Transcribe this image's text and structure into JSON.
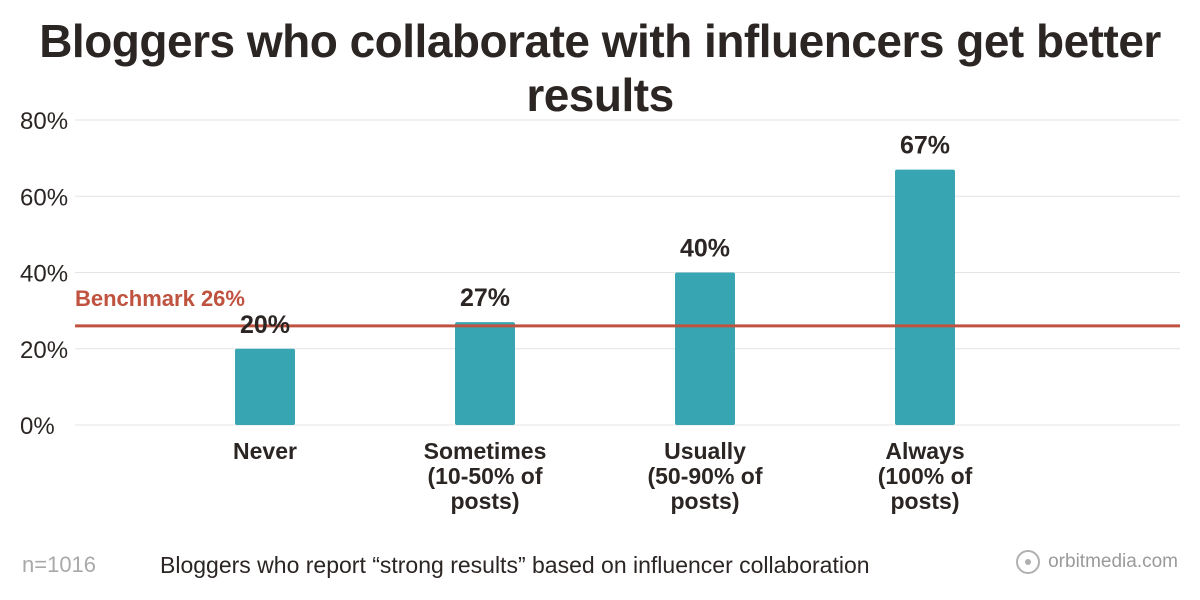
{
  "chart_data": {
    "type": "bar",
    "title": "Bloggers who collaborate with influencers get better results",
    "categories": [
      [
        "Never"
      ],
      [
        "Sometimes",
        "(10-50% of",
        "posts)"
      ],
      [
        "Usually",
        "(50-90% of",
        "posts)"
      ],
      [
        "Always",
        "(100% of",
        "posts)"
      ]
    ],
    "values": [
      20,
      27,
      40,
      67
    ],
    "value_labels": [
      "20%",
      "27%",
      "40%",
      "67%"
    ],
    "ylim": [
      0,
      80
    ],
    "yticks": [
      0,
      20,
      40,
      60,
      80
    ],
    "ytick_labels": [
      "0%",
      "20%",
      "40%",
      "60%",
      "80%"
    ],
    "grid": true,
    "benchmark": {
      "value": 26,
      "label": "Benchmark 26%"
    },
    "xlabel": "",
    "ylabel": ""
  },
  "footer": {
    "sample": "n=1016",
    "caption": "Bloggers who report “strong results” based on influencer collaboration",
    "brand": "orbitmedia.com"
  },
  "colors": {
    "bar": "#38a5b2",
    "benchmark": "#c0533f",
    "grid": "#e4e4e4",
    "text": "#2b2523"
  }
}
